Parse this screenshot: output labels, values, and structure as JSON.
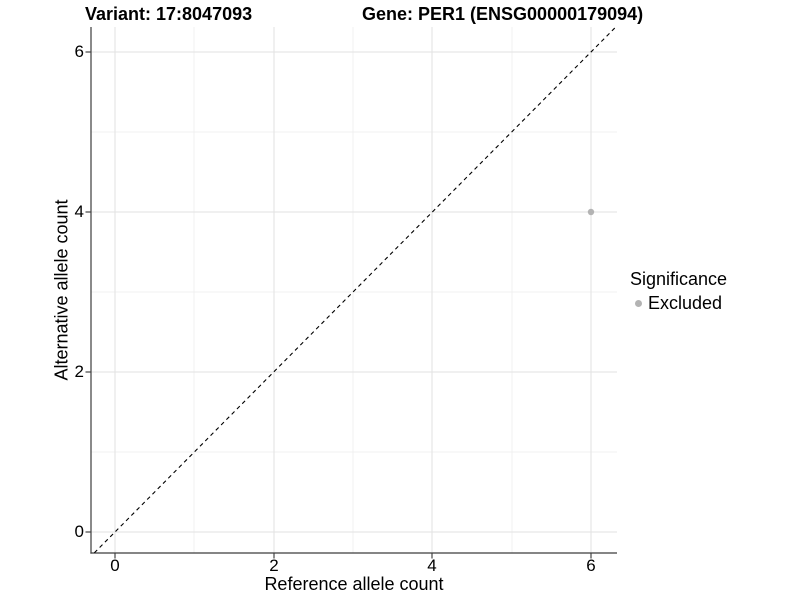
{
  "chart_data": {
    "type": "scatter",
    "title_left": "Variant: 17:8047093",
    "title_right": "Gene: PER1 (ENSG00000179094)",
    "xlabel": "Reference allele count",
    "ylabel": "Alternative allele count",
    "xlim": [
      -0.3,
      6.33
    ],
    "ylim": [
      -0.26,
      6.31
    ],
    "x_ticks": [
      0,
      2,
      4,
      6
    ],
    "y_ticks": [
      0,
      2,
      4,
      6
    ],
    "grid": "major and minor gridlines, light gray, on white panel",
    "legend_position": "right",
    "series": [
      {
        "name": "Excluded",
        "marker": "circle",
        "color": "#b3b3b3",
        "points": [
          {
            "x": 6,
            "y": 4
          }
        ]
      }
    ],
    "reference_line": {
      "label": "identity y = x",
      "slope": 1,
      "intercept": 0,
      "style": "dashed",
      "color": "#000000"
    }
  },
  "titles": {
    "left": "Variant: 17:8047093",
    "right": "Gene: PER1 (ENSG00000179094)"
  },
  "axes": {
    "x": {
      "label": "Reference allele count"
    },
    "y": {
      "label": "Alternative allele count"
    }
  },
  "legend": {
    "title": "Significance",
    "items": [
      {
        "label": "Excluded",
        "color": "#b3b3b3"
      }
    ]
  },
  "colors": {
    "point": "#b3b3b3",
    "axis_line": "#3c3c3c",
    "tick_mark": "#333333",
    "grid_major": "#e2e2e2",
    "grid_minor": "#f1f1f1",
    "reference_line": "#000000",
    "background": "#ffffff"
  }
}
